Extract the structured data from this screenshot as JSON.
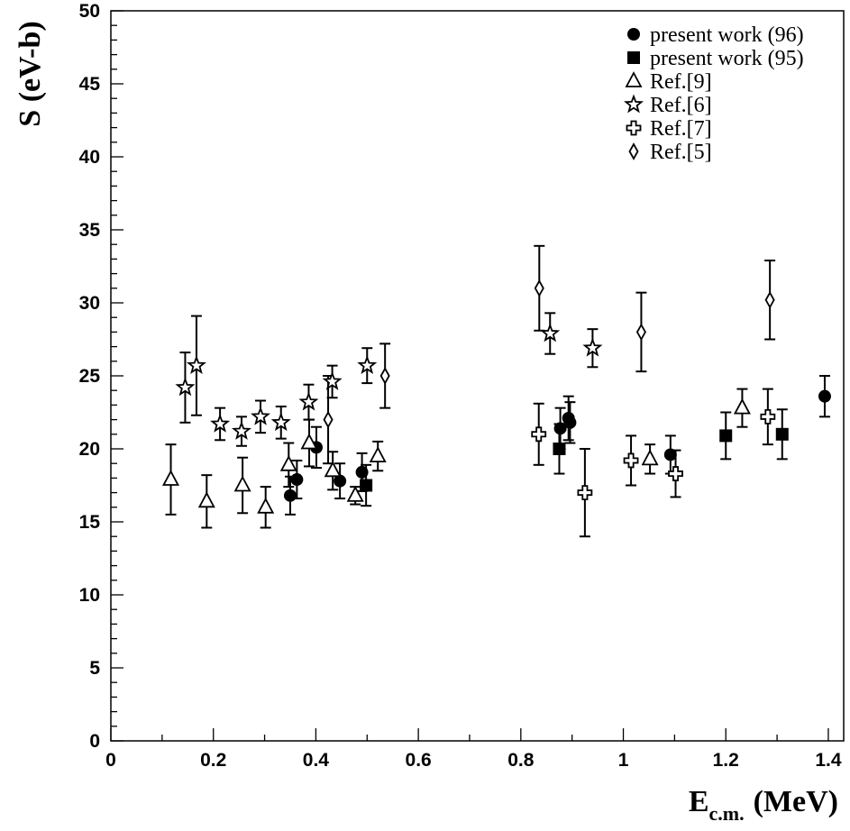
{
  "chart_data": {
    "type": "scatter",
    "title": "",
    "xlabel": {
      "main": "E",
      "sub": "c.m.",
      "unit": "(MeV)"
    },
    "ylabel": "S (eV-b)",
    "xlim": [
      0,
      1.43
    ],
    "ylim": [
      0,
      50
    ],
    "x_ticks": [
      0,
      0.2,
      0.4,
      0.6,
      0.8,
      1,
      1.2,
      1.4
    ],
    "x_tick_labels": [
      "0",
      "0.2",
      "0.4",
      "0.6",
      "0.8",
      "1",
      "1.2",
      "1.4"
    ],
    "y_ticks": [
      0,
      5,
      10,
      15,
      20,
      25,
      30,
      35,
      40,
      45,
      50
    ],
    "y_tick_labels": [
      "0",
      "5",
      "10",
      "15",
      "20",
      "25",
      "30",
      "35",
      "40",
      "45",
      "50"
    ],
    "grid": false,
    "legend_position": "top-right",
    "series": [
      {
        "name": "present work (96)",
        "marker": "filled-circle",
        "points": [
          {
            "x": 0.35,
            "y": 16.8,
            "err": 1.3
          },
          {
            "x": 0.363,
            "y": 17.9,
            "err": 1.3
          },
          {
            "x": 0.401,
            "y": 20.1,
            "err": 1.4
          },
          {
            "x": 0.447,
            "y": 17.8,
            "err": 1.2
          },
          {
            "x": 0.49,
            "y": 18.4,
            "err": 1.3
          },
          {
            "x": 0.877,
            "y": 21.4,
            "err": 1.4
          },
          {
            "x": 0.893,
            "y": 22.1,
            "err": 1.5
          },
          {
            "x": 0.896,
            "y": 21.8,
            "err": 1.4
          },
          {
            "x": 1.092,
            "y": 19.6,
            "err": 1.3
          },
          {
            "x": 1.393,
            "y": 23.6,
            "err": 1.4
          }
        ]
      },
      {
        "name": "present work (95)",
        "marker": "filled-square",
        "points": [
          {
            "x": 0.498,
            "y": 17.5,
            "err": 1.4
          },
          {
            "x": 0.875,
            "y": 20.0,
            "err": 1.7
          },
          {
            "x": 1.2,
            "y": 20.9,
            "err": 1.6
          },
          {
            "x": 1.31,
            "y": 21.0,
            "err": 1.7
          }
        ]
      },
      {
        "name": "Ref.[9]",
        "marker": "open-triangle",
        "points": [
          {
            "x": 0.117,
            "y": 17.9,
            "err": 2.4
          },
          {
            "x": 0.187,
            "y": 16.4,
            "err": 1.8
          },
          {
            "x": 0.257,
            "y": 17.5,
            "err": 1.9
          },
          {
            "x": 0.302,
            "y": 16.0,
            "err": 1.4
          },
          {
            "x": 0.347,
            "y": 18.9,
            "err": 1.5
          },
          {
            "x": 0.387,
            "y": 20.4,
            "err": 1.6
          },
          {
            "x": 0.433,
            "y": 18.5,
            "err": 1.3
          },
          {
            "x": 0.477,
            "y": 16.8,
            "err": 0.6
          },
          {
            "x": 0.521,
            "y": 19.5,
            "err": 1.0
          },
          {
            "x": 1.052,
            "y": 19.3,
            "err": 1.0
          },
          {
            "x": 1.232,
            "y": 22.8,
            "err": 1.3
          }
        ]
      },
      {
        "name": "Ref.[6]",
        "marker": "open-star",
        "points": [
          {
            "x": 0.145,
            "y": 24.2,
            "err": 2.4
          },
          {
            "x": 0.167,
            "y": 25.7,
            "err": 3.4
          },
          {
            "x": 0.213,
            "y": 21.7,
            "err": 1.1
          },
          {
            "x": 0.255,
            "y": 21.2,
            "err": 1.0
          },
          {
            "x": 0.292,
            "y": 22.2,
            "err": 1.1
          },
          {
            "x": 0.332,
            "y": 21.8,
            "err": 1.1
          },
          {
            "x": 0.386,
            "y": 23.2,
            "err": 1.2
          },
          {
            "x": 0.432,
            "y": 24.6,
            "err": 1.1
          },
          {
            "x": 0.5,
            "y": 25.7,
            "err": 1.2
          },
          {
            "x": 0.857,
            "y": 27.9,
            "err": 1.4
          },
          {
            "x": 0.94,
            "y": 26.9,
            "err": 1.3
          }
        ]
      },
      {
        "name": "Ref.[7]",
        "marker": "open-cross",
        "points": [
          {
            "x": 0.835,
            "y": 21.0,
            "err": 2.1
          },
          {
            "x": 0.925,
            "y": 17.0,
            "err": 3.0
          },
          {
            "x": 1.015,
            "y": 19.2,
            "err": 1.7
          },
          {
            "x": 1.102,
            "y": 18.3,
            "err": 1.6
          },
          {
            "x": 1.282,
            "y": 22.2,
            "err": 1.9
          }
        ]
      },
      {
        "name": "Ref.[5]",
        "marker": "open-diamond",
        "points": [
          {
            "x": 0.424,
            "y": 22.0,
            "err": 3.0
          },
          {
            "x": 0.535,
            "y": 25.0,
            "err": 2.2
          },
          {
            "x": 0.836,
            "y": 31.0,
            "err": 2.9
          },
          {
            "x": 1.035,
            "y": 28.0,
            "err": 2.7
          },
          {
            "x": 1.286,
            "y": 30.2,
            "err": 2.7
          }
        ]
      }
    ]
  }
}
